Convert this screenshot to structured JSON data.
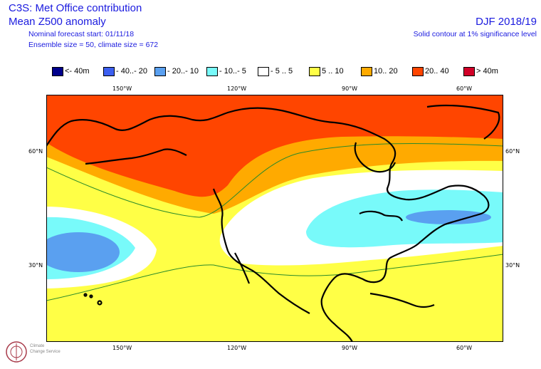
{
  "header": {
    "title": "C3S: Met Office contribution",
    "subtitle": "Mean Z500 anomaly",
    "forecast_start": "Nominal forecast start: 01/11/18",
    "ensemble": "Ensemble size = 50, climate size = 672",
    "season": "DJF 2018/19",
    "contour_note": "Solid contour at 1% significance level"
  },
  "legend": [
    {
      "label": "<- 40m",
      "color": "#00008b"
    },
    {
      "label": "- 40..- 20",
      "color": "#3c5ff0"
    },
    {
      "label": "- 20..- 10",
      "color": "#5aa0f0"
    },
    {
      "label": "- 10..- 5",
      "color": "#78fafa"
    },
    {
      "label": "- 5 .. 5",
      "color": "#ffffff"
    },
    {
      "label": "5 .. 10",
      "color": "#ffff46"
    },
    {
      "label": "10.. 20",
      "color": "#ffaa00"
    },
    {
      "label": "20.. 40",
      "color": "#ff4500"
    },
    {
      "label": "> 40m",
      "color": "#d20028"
    }
  ],
  "axes": {
    "lon_top": [
      "150°W",
      "120°W",
      "90°W",
      "60°W"
    ],
    "lon_bottom": [
      "150°W",
      "120°W",
      "90°W",
      "60°W"
    ],
    "lat_left": [
      "60°N",
      "30°N"
    ],
    "lat_right": [
      "60°N",
      "30°N"
    ]
  },
  "logo": {
    "line1": "Climate",
    "line2": "Change Service"
  }
}
